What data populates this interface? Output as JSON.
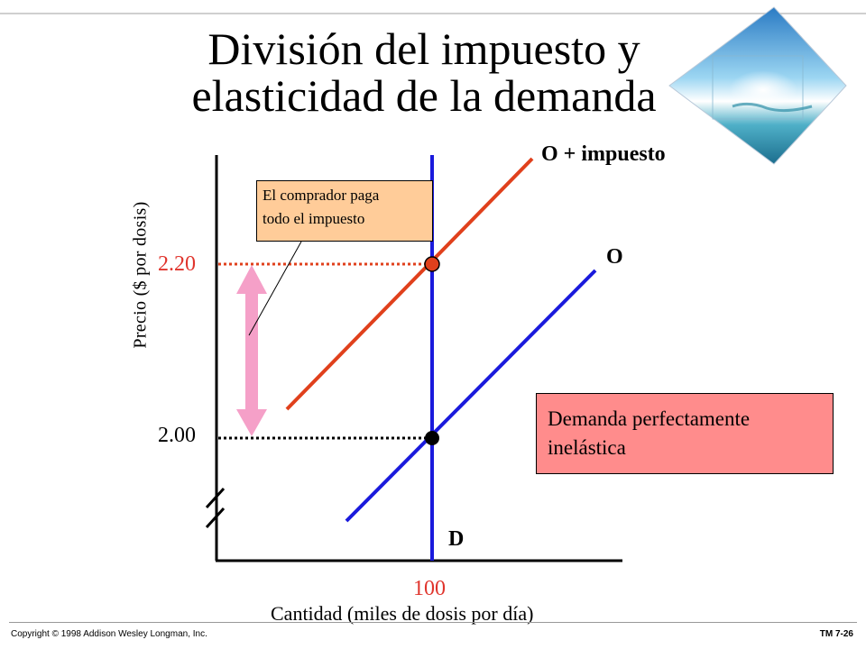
{
  "slide": {
    "title_line1": "División del impuesto y",
    "title_line2": "elasticidad de la demanda",
    "copyright": "Copyright © 1998 Addison Wesley Longman, Inc.",
    "slide_number": "TM 7-26"
  },
  "diagram": {
    "ylabel": "Precio ($ por dosis)",
    "xlabel": "Cantidad (miles de dosis por día)",
    "price_high": "2.20",
    "price_low": "2.00",
    "quantity": "100",
    "supply_tax_label": "O + impuesto",
    "supply_label": "O",
    "demand_label": "D",
    "buyer_callout_line1": "El comprador paga",
    "buyer_callout_line2": "todo el impuesto",
    "demand_callout_line1": "Demanda perfectamente",
    "demand_callout_line2": "inelástica"
  },
  "colors": {
    "supply_tax": "#e0401c",
    "supply": "#1a1adc",
    "demand": "#1a1adc",
    "tax_arrow": "#f5a0c8",
    "buyer_callout_bg": "#ffcc99",
    "demand_callout_bg": "#ff8c8c",
    "highlight_text": "#e0342c"
  },
  "decor": {
    "image_icon": "tropical-beach-diamond-icon"
  }
}
